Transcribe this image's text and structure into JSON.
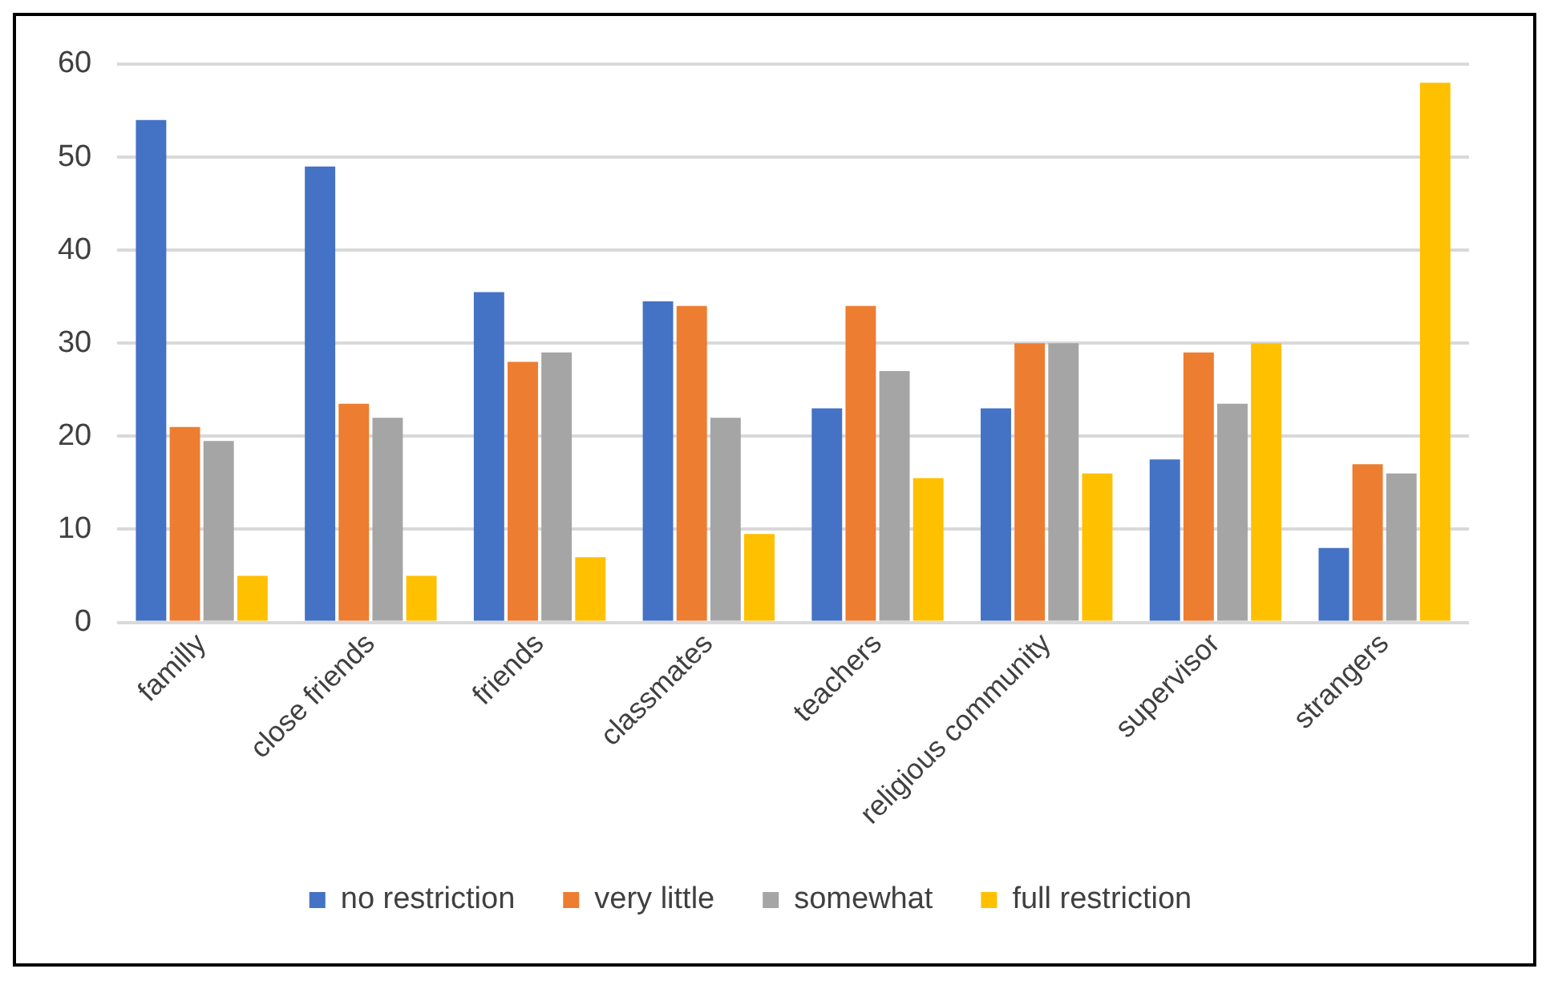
{
  "chart_data": {
    "type": "bar",
    "categories": [
      "familly",
      "close friends",
      "friends",
      "classmates",
      "teachers",
      "religious community",
      "supervisor",
      "strangers"
    ],
    "series": [
      {
        "name": "no restriction",
        "color": "#4472c4",
        "values": [
          54,
          49,
          35.5,
          34.5,
          23,
          23,
          17.5,
          8
        ]
      },
      {
        "name": "very little",
        "color": "#ed7d31",
        "values": [
          21,
          23.5,
          28,
          34,
          34,
          30,
          29,
          17
        ]
      },
      {
        "name": "somewhat",
        "color": "#a5a5a5",
        "values": [
          19.5,
          22,
          29,
          22,
          27,
          30,
          23.5,
          16
        ]
      },
      {
        "name": "full restriction",
        "color": "#ffc000",
        "values": [
          5,
          5,
          7,
          9.5,
          15.5,
          16,
          30,
          58
        ]
      }
    ],
    "ylim": [
      0,
      60
    ],
    "yticks": [
      0,
      10,
      20,
      30,
      40,
      50,
      60
    ],
    "grid": "y",
    "legend": "bottom"
  }
}
